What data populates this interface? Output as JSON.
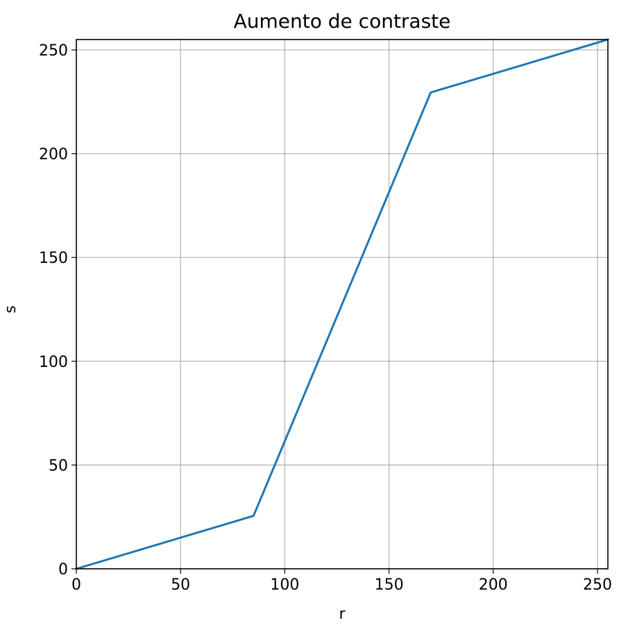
{
  "chart_data": {
    "type": "line",
    "title": "Aumento de contraste",
    "xlabel": "r",
    "ylabel": "s",
    "xlim": [
      0,
      255
    ],
    "ylim": [
      0,
      255
    ],
    "xticks": [
      0,
      50,
      100,
      150,
      200,
      250
    ],
    "yticks": [
      0,
      50,
      100,
      150,
      200,
      250
    ],
    "grid": true,
    "series": [
      {
        "x": [
          0,
          85,
          170,
          255
        ],
        "y": [
          0,
          25.5,
          229.5,
          255
        ],
        "color": "#1f77b4"
      }
    ]
  }
}
